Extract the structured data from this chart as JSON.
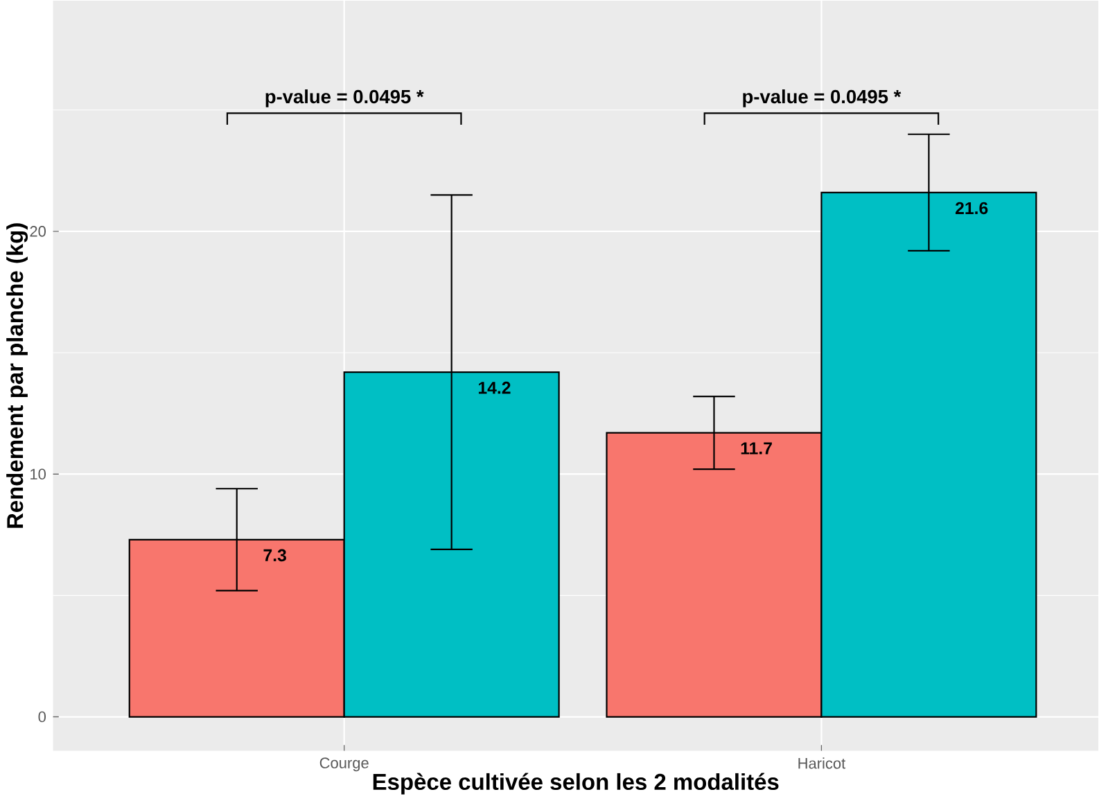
{
  "chart_data": {
    "type": "bar",
    "xlabel": "Espèce cultivée selon les 2 modalités",
    "ylabel": "Rendement par planche (kg)",
    "categories": [
      "Courge",
      "Haricot"
    ],
    "series": [
      {
        "color": "#f8766d",
        "values": [
          7.3,
          11.7
        ],
        "errors": [
          2.1,
          1.5
        ],
        "value_labels": [
          "7.3",
          "11.7"
        ]
      },
      {
        "color": "#00bfc4",
        "values": [
          14.2,
          21.6
        ],
        "errors": [
          7.3,
          2.4
        ],
        "value_labels": [
          "14.2",
          "21.6"
        ]
      }
    ],
    "ylim": [
      -1.4,
      29.5
    ],
    "yticks": [
      0,
      10,
      20
    ],
    "grid": true,
    "annotations": [
      "p-value = 0.0495  *",
      "p-value = 0.0495  *"
    ]
  }
}
